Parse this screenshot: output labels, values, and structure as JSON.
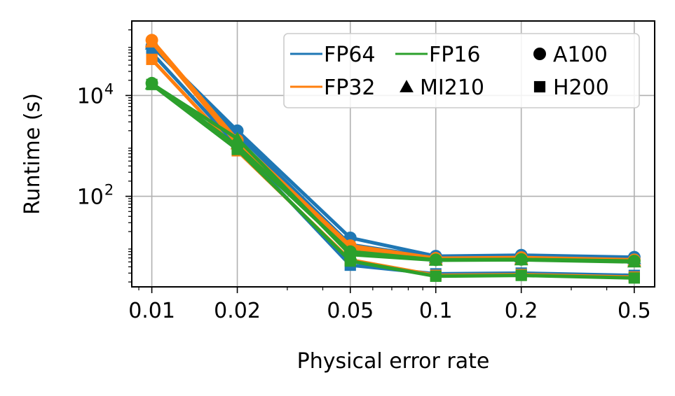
{
  "chart_data": {
    "type": "line",
    "title": "",
    "xlabel": "Physical error rate",
    "ylabel": "Runtime (s)",
    "xscale": "log",
    "yscale": "log",
    "xlim": [
      0.0085,
      0.59
    ],
    "ylim": [
      1.6,
      300000
    ],
    "grid": true,
    "x": [
      0.01,
      0.02,
      0.05,
      0.1,
      0.2,
      0.5
    ],
    "xtick_labels": [
      "0.01",
      "0.02",
      "0.05",
      "0.1",
      "0.2",
      "0.5"
    ],
    "ytick_labels": [
      {
        "value": 100,
        "base": "10",
        "exp": "2"
      },
      {
        "value": 10000,
        "base": "10",
        "exp": "4"
      }
    ],
    "legend": {
      "position": "upper right",
      "entries": [
        {
          "kind": "line",
          "label": "FP64",
          "color": "#1f77b4"
        },
        {
          "kind": "line",
          "label": "FP16",
          "color": "#2ca02c"
        },
        {
          "kind": "marker",
          "label": "A100",
          "marker": "circle"
        },
        {
          "kind": "line",
          "label": "FP32",
          "color": "#ff7f0e"
        },
        {
          "kind": "marker",
          "label": "MI210",
          "marker": "triangle"
        },
        {
          "kind": "marker",
          "label": "H200",
          "marker": "square"
        }
      ]
    },
    "series": [
      {
        "name": "FP64 A100",
        "precision": "FP64",
        "gpu": "A100",
        "color": "#1f77b4",
        "marker": "circle",
        "values": [
          95000,
          2000,
          15,
          6.5,
          6.8,
          6.2
        ]
      },
      {
        "name": "FP64 MI210",
        "precision": "FP64",
        "gpu": "MI210",
        "color": "#1f77b4",
        "marker": "triangle",
        "values": [
          105000,
          1700,
          11,
          6.1,
          6.3,
          5.8
        ]
      },
      {
        "name": "FP64 H200",
        "precision": "FP64",
        "gpu": "H200",
        "color": "#1f77b4",
        "marker": "square",
        "values": [
          70000,
          1000,
          4.3,
          2.9,
          3.0,
          2.7
        ]
      },
      {
        "name": "FP32 A100",
        "precision": "FP32",
        "gpu": "A100",
        "color": "#ff7f0e",
        "marker": "circle",
        "values": [
          125000,
          1300,
          10.5,
          5.9,
          6.1,
          5.5
        ]
      },
      {
        "name": "FP32 MI210",
        "precision": "FP32",
        "gpu": "MI210",
        "color": "#ff7f0e",
        "marker": "triangle",
        "values": [
          115000,
          1100,
          9.5,
          5.7,
          5.8,
          5.3
        ]
      },
      {
        "name": "FP32 H200",
        "precision": "FP32",
        "gpu": "H200",
        "color": "#ff7f0e",
        "marker": "square",
        "values": [
          52000,
          800,
          5.5,
          2.7,
          2.8,
          2.5
        ]
      },
      {
        "name": "FP16 A100",
        "precision": "FP16",
        "gpu": "A100",
        "color": "#2ca02c",
        "marker": "circle",
        "values": [
          17500,
          1000,
          8.0,
          5.5,
          5.6,
          5.2
        ]
      },
      {
        "name": "FP16 MI210",
        "precision": "FP16",
        "gpu": "MI210",
        "color": "#2ca02c",
        "marker": "triangle",
        "values": [
          17000,
          1400,
          7.0,
          5.4,
          5.5,
          5.0
        ]
      },
      {
        "name": "FP16 H200",
        "precision": "FP16",
        "gpu": "H200",
        "color": "#2ca02c",
        "marker": "square",
        "values": [
          16500,
          850,
          5.2,
          2.6,
          2.7,
          2.4
        ]
      }
    ]
  }
}
